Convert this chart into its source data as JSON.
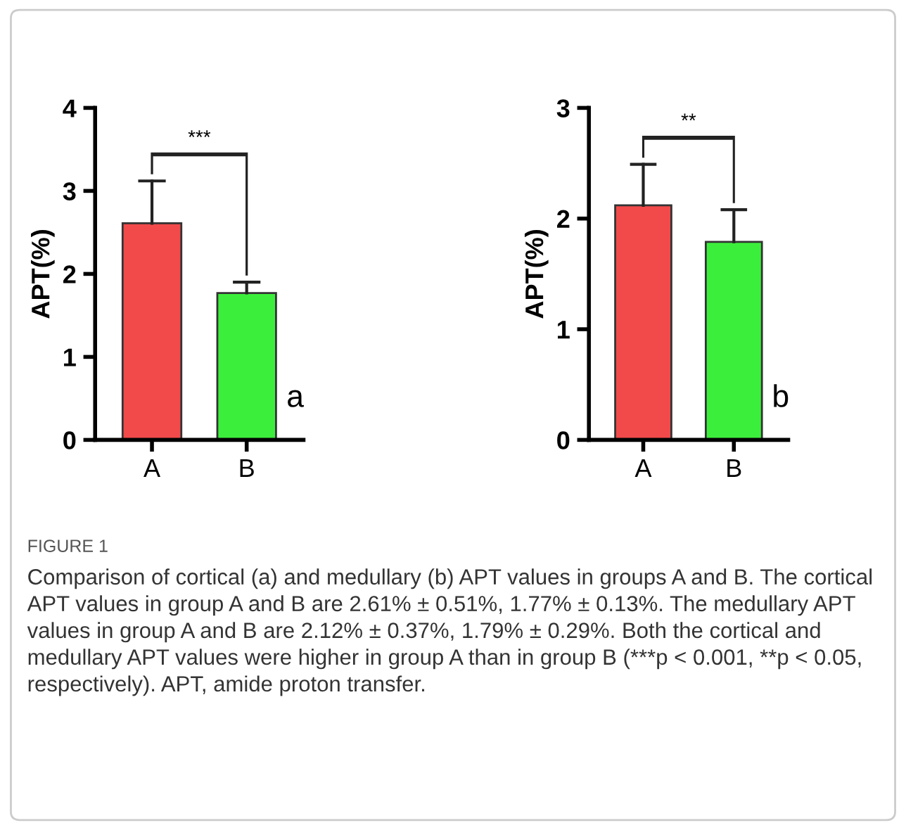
{
  "chart_data": [
    {
      "type": "bar",
      "ylabel": "APT(%)",
      "categories": [
        "A",
        "B"
      ],
      "values": [
        2.61,
        1.77
      ],
      "colors": [
        "#f24a4a",
        "#3cee3c"
      ],
      "errors": [
        [
          2.61,
          3.12
        ],
        [
          1.77,
          1.9
        ]
      ],
      "ylim": [
        0,
        4
      ],
      "yticks": [
        0,
        1,
        2,
        3,
        4
      ],
      "grid": false,
      "annotations": [
        "***",
        "a",
        "FIGURE 1",
        "Comparison of cortical (a) and medullary (b) APT values in groups A and B. The cortical APT values in group A and B are 2.61% ± 0.51%, 1.77% ± 0.13%. The medullary APT values in group A and B are 2.12% ± 0.37%, 1.79% ± 0.29%. Both the cortical and medullary APT values were higher in group A than in group B (***p < 0.001, **p < 0.05, respectively). APT, amide proton transfer."
      ]
    },
    {
      "type": "bar",
      "ylabel": "APT(%)",
      "categories": [
        "A",
        "B"
      ],
      "values": [
        2.12,
        1.79
      ],
      "colors": [
        "#f24a4a",
        "#3cee3c"
      ],
      "errors": [
        [
          2.12,
          2.49
        ],
        [
          1.79,
          2.08
        ]
      ],
      "ylim": [
        0,
        3
      ],
      "yticks": [
        0,
        1,
        2,
        3
      ],
      "grid": false,
      "annotations": [
        "**",
        "b"
      ]
    }
  ]
}
